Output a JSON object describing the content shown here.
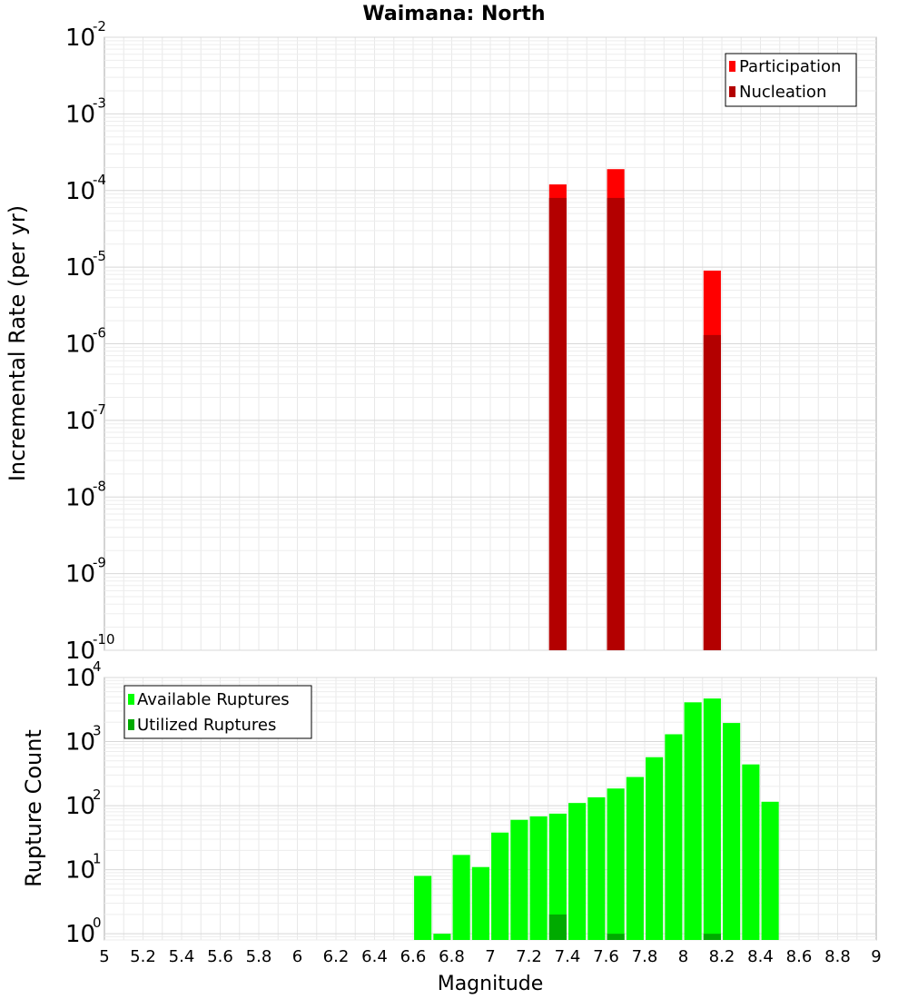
{
  "title": "Waimana: North",
  "chart_data": [
    {
      "type": "bar",
      "title": "Waimana: North",
      "xlabel": "",
      "ylabel": "Incremental Rate (per yr)",
      "yscale": "log",
      "xlim": [
        5,
        9
      ],
      "ylim": [
        1e-10,
        0.01
      ],
      "y_tick_exponents": [
        -10,
        -9,
        -8,
        -7,
        -6,
        -5,
        -4,
        -3,
        -2
      ],
      "bar_width": 0.09,
      "grid": true,
      "legend_position": "top-right",
      "series": [
        {
          "name": "Participation",
          "color": "#ff0000",
          "x": [
            7.35,
            7.65,
            8.15
          ],
          "values": [
            0.00012,
            0.00019,
            9e-06
          ]
        },
        {
          "name": "Nucleation",
          "color": "#b30000",
          "x": [
            7.35,
            7.65,
            8.15
          ],
          "values": [
            8e-05,
            8e-05,
            1.3e-06
          ]
        }
      ]
    },
    {
      "type": "bar",
      "title": "",
      "xlabel": "Magnitude",
      "ylabel": "Rupture Count",
      "yscale": "log",
      "xlim": [
        5,
        9
      ],
      "ylim": [
        0.8,
        10000.0
      ],
      "y_tick_exponents": [
        0,
        1,
        2,
        3,
        4
      ],
      "x_ticks": [
        "5",
        "5.2",
        "5.4",
        "5.6",
        "5.8",
        "6",
        "6.2",
        "6.4",
        "6.6",
        "6.8",
        "7",
        "7.2",
        "7.4",
        "7.6",
        "7.8",
        "8",
        "8.2",
        "8.4",
        "8.6",
        "8.8",
        "9"
      ],
      "bar_width": 0.09,
      "grid": true,
      "legend_position": "top-left",
      "series": [
        {
          "name": "Available Ruptures",
          "color": "#00ff00",
          "x": [
            6.65,
            6.75,
            6.85,
            6.95,
            7.05,
            7.15,
            7.25,
            7.35,
            7.45,
            7.55,
            7.65,
            7.75,
            7.85,
            7.95,
            8.05,
            8.15,
            8.25,
            8.35,
            8.45
          ],
          "values": [
            8,
            1,
            17,
            11,
            38,
            60,
            68,
            75,
            110,
            135,
            185,
            280,
            570,
            1300,
            4100,
            4700,
            1950,
            440,
            115
          ]
        },
        {
          "name": "Utilized Ruptures",
          "color": "#00aa00",
          "x": [
            7.35,
            7.65,
            8.15
          ],
          "values": [
            2,
            1,
            1
          ]
        }
      ]
    }
  ]
}
